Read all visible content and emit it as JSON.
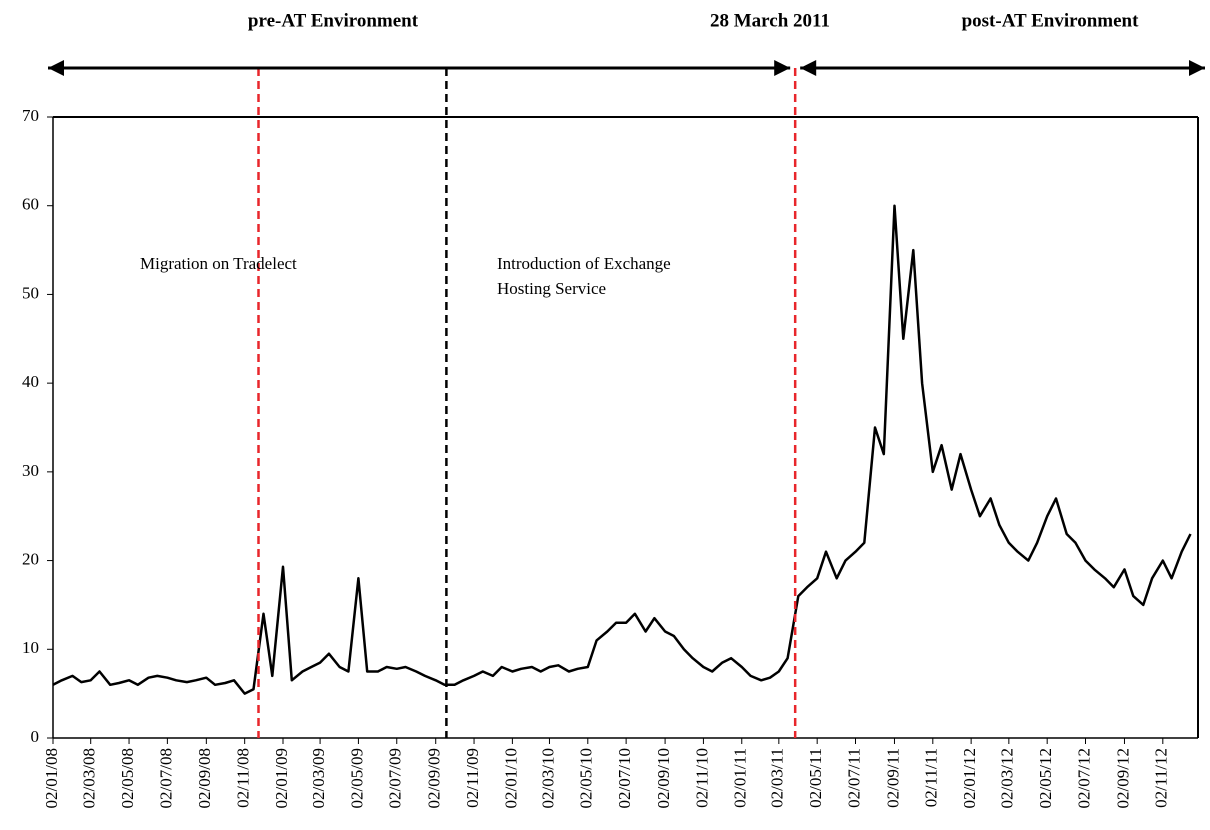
{
  "chart_data": {
    "type": "line",
    "headers": [
      "pre-AT Environment",
      "28 March 2011",
      "post-AT Environment"
    ],
    "annotations": [
      {
        "lines": [
          "Migration on  Tradelect"
        ]
      },
      {
        "lines": [
          "Introduction of Exchange",
          "Hosting Service"
        ]
      }
    ],
    "vlines": [
      {
        "x": "24/11/08",
        "color": "#e8262b"
      },
      {
        "x": "19/09/09",
        "color": "#000000"
      },
      {
        "x": "28/03/11",
        "color": "#e8262b"
      }
    ],
    "xlim": [
      "02/01/08",
      "28/12/12"
    ],
    "xticks": [
      "02/01/08",
      "02/03/08",
      "02/05/08",
      "02/07/08",
      "02/09/08",
      "02/11/08",
      "02/01/09",
      "02/03/09",
      "02/05/09",
      "02/07/09",
      "02/09/09",
      "02/11/09",
      "02/01/10",
      "02/03/10",
      "02/05/10",
      "02/07/10",
      "02/09/10",
      "02/11/10",
      "02/01/11",
      "02/03/11",
      "02/05/11",
      "02/07/11",
      "02/09/11",
      "02/11/11",
      "02/01/12",
      "02/03/12",
      "02/05/12",
      "02/07/12",
      "02/09/12",
      "02/11/12"
    ],
    "ylim": [
      0,
      70
    ],
    "yticks": [
      0,
      10,
      20,
      30,
      40,
      50,
      60,
      70
    ],
    "series": [
      {
        "color": "#000000",
        "x": [
          "02/01/08",
          "16/01/08",
          "02/02/08",
          "16/02/08",
          "02/03/08",
          "16/03/08",
          "02/04/08",
          "16/04/08",
          "02/05/08",
          "16/05/08",
          "02/06/08",
          "16/06/08",
          "02/07/08",
          "16/07/08",
          "02/08/08",
          "16/08/08",
          "02/09/08",
          "16/09/08",
          "02/10/08",
          "16/10/08",
          "02/11/08",
          "16/11/08",
          "02/12/08",
          "16/12/08",
          "02/01/09",
          "16/01/09",
          "02/02/09",
          "16/02/09",
          "02/03/09",
          "16/03/09",
          "02/04/09",
          "16/04/09",
          "02/05/09",
          "16/05/09",
          "02/06/09",
          "16/06/09",
          "02/07/09",
          "16/07/09",
          "02/08/09",
          "16/08/09",
          "02/09/09",
          "16/09/09",
          "02/10/09",
          "16/10/09",
          "02/11/09",
          "16/11/09",
          "02/12/09",
          "16/12/09",
          "02/01/10",
          "16/01/10",
          "02/02/10",
          "16/02/10",
          "02/03/10",
          "16/03/10",
          "02/04/10",
          "16/04/10",
          "02/05/10",
          "16/05/10",
          "02/06/10",
          "16/06/10",
          "02/07/10",
          "16/07/10",
          "02/08/10",
          "16/08/10",
          "02/09/10",
          "16/09/10",
          "02/10/10",
          "16/10/10",
          "02/11/10",
          "16/11/10",
          "02/12/10",
          "16/12/10",
          "02/01/11",
          "16/01/11",
          "02/02/11",
          "16/02/11",
          "02/03/11",
          "16/03/11",
          "02/04/11",
          "16/04/11",
          "02/05/11",
          "16/05/11",
          "02/06/11",
          "16/06/11",
          "02/07/11",
          "16/07/11",
          "02/08/11",
          "16/08/11",
          "02/09/11",
          "16/09/11",
          "02/10/11",
          "16/10/11",
          "02/11/11",
          "16/11/11",
          "02/12/11",
          "16/12/11",
          "02/01/12",
          "16/01/12",
          "02/02/12",
          "16/02/12",
          "02/03/12",
          "16/03/12",
          "02/04/12",
          "16/04/12",
          "02/05/12",
          "16/05/12",
          "02/06/12",
          "16/06/12",
          "02/07/12",
          "16/07/12",
          "02/08/12",
          "16/08/12",
          "02/09/12",
          "16/09/12",
          "02/10/12",
          "16/10/12",
          "02/11/12",
          "16/11/12",
          "02/12/12",
          "16/12/12"
        ],
        "values": [
          6,
          6.5,
          7,
          6.3,
          6.5,
          7.5,
          6,
          6.2,
          6.5,
          6,
          6.8,
          7,
          6.8,
          6.5,
          6.3,
          6.5,
          6.8,
          6,
          6.2,
          6.5,
          5,
          5.5,
          14,
          7,
          19.3,
          6.5,
          7.5,
          8,
          8.5,
          9.5,
          8,
          7.5,
          18,
          7.5,
          7.5,
          8,
          7.8,
          8,
          7.5,
          7,
          6.5,
          6,
          6,
          6.5,
          7,
          7.5,
          7,
          8,
          7.5,
          7.8,
          8,
          7.5,
          8,
          8.2,
          7.5,
          7.8,
          8,
          11,
          12,
          13,
          13,
          14,
          12,
          13.5,
          12,
          11.5,
          10,
          9,
          8,
          7.5,
          8.5,
          9,
          8,
          7,
          6.5,
          6.8,
          7.5,
          9,
          16,
          17,
          18,
          21,
          18,
          20,
          21,
          22,
          35,
          32,
          60,
          45,
          55,
          40,
          30,
          33,
          28,
          32,
          28,
          25,
          27,
          24,
          22,
          21,
          20,
          22,
          25,
          27,
          23,
          22,
          20,
          19,
          18,
          17,
          19,
          16,
          15,
          18,
          20,
          18,
          21,
          23
        ]
      }
    ]
  }
}
